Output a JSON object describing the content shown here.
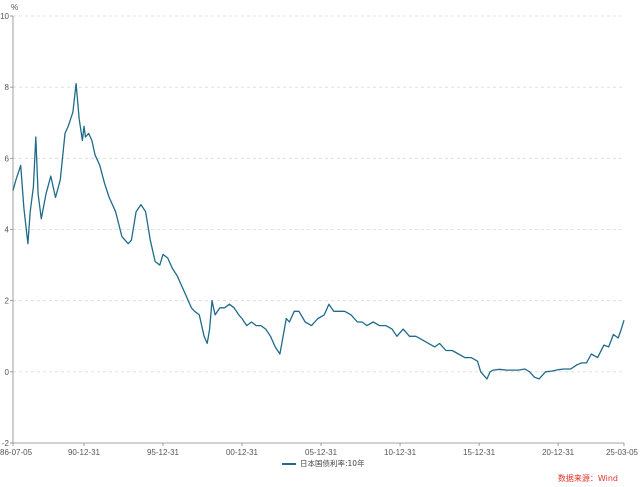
{
  "chart_data": {
    "type": "line",
    "unit_label": "%",
    "y_ticks": [
      "10",
      "8",
      "6",
      "4",
      "2",
      "0",
      "-2"
    ],
    "ylim": [
      -2,
      10
    ],
    "x_ticks": [
      "86-07-05",
      "90-12-31",
      "95-12-31",
      "00-12-31",
      "05-12-31",
      "10-12-31",
      "15-12-31",
      "20-12-31",
      "25-03-05"
    ],
    "x_tick_years": [
      1986.51,
      1991.0,
      1996.0,
      2001.0,
      2006.0,
      2011.0,
      2016.0,
      2021.0,
      2025.17
    ],
    "xlim": [
      1986.51,
      2025.17
    ],
    "grid": true,
    "legend_position": "bottom",
    "source": "数据来源：Wind",
    "series": [
      {
        "name": "日本国债利率:10年",
        "color": "#1f6b8a",
        "x": [
          1986.51,
          1986.7,
          1987.0,
          1987.2,
          1987.45,
          1987.6,
          1987.8,
          1987.95,
          1988.1,
          1988.3,
          1988.6,
          1988.9,
          1989.2,
          1989.5,
          1989.8,
          1990.0,
          1990.3,
          1990.5,
          1990.7,
          1990.9,
          1991.0,
          1991.1,
          1991.3,
          1991.5,
          1991.7,
          1992.0,
          1992.3,
          1992.6,
          1993.0,
          1993.4,
          1993.8,
          1994.0,
          1994.3,
          1994.6,
          1994.9,
          1995.2,
          1995.5,
          1995.8,
          1996.0,
          1996.3,
          1996.6,
          1996.9,
          1997.2,
          1997.5,
          1997.8,
          1998.0,
          1998.3,
          1998.6,
          1998.8,
          1998.95,
          1999.1,
          1999.3,
          1999.6,
          1999.9,
          2000.2,
          2000.5,
          2000.8,
          2001.0,
          2001.3,
          2001.6,
          2001.9,
          2002.2,
          2002.5,
          2002.8,
          2003.1,
          2003.4,
          2003.6,
          2003.8,
          2004.0,
          2004.3,
          2004.6,
          2005.0,
          2005.4,
          2005.8,
          2006.2,
          2006.5,
          2006.8,
          2007.1,
          2007.5,
          2007.9,
          2008.3,
          2008.6,
          2008.9,
          2009.3,
          2009.7,
          2010.1,
          2010.5,
          2010.8,
          2011.2,
          2011.6,
          2012.0,
          2012.4,
          2012.8,
          2013.2,
          2013.5,
          2013.9,
          2014.3,
          2014.7,
          2015.1,
          2015.5,
          2015.9,
          2016.1,
          2016.3,
          2016.5,
          2016.7,
          2016.9,
          2017.3,
          2017.7,
          2018.1,
          2018.5,
          2018.9,
          2019.2,
          2019.5,
          2019.8,
          2020.2,
          2020.6,
          2021.0,
          2021.4,
          2021.8,
          2022.2,
          2022.5,
          2022.8,
          2023.1,
          2023.5,
          2023.9,
          2024.2,
          2024.5,
          2024.8,
          2025.0,
          2025.17
        ],
        "values": [
          5.1,
          5.4,
          5.8,
          4.6,
          3.6,
          4.5,
          5.2,
          6.6,
          5.0,
          4.3,
          5.0,
          5.5,
          4.9,
          5.4,
          6.7,
          6.9,
          7.3,
          8.1,
          7.1,
          6.5,
          6.9,
          6.6,
          6.7,
          6.5,
          6.1,
          5.8,
          5.3,
          4.9,
          4.5,
          3.8,
          3.6,
          3.7,
          4.5,
          4.7,
          4.5,
          3.7,
          3.1,
          3.0,
          3.3,
          3.2,
          2.9,
          2.7,
          2.4,
          2.1,
          1.8,
          1.7,
          1.6,
          1.0,
          0.8,
          1.2,
          2.0,
          1.6,
          1.8,
          1.8,
          1.9,
          1.8,
          1.6,
          1.5,
          1.3,
          1.4,
          1.3,
          1.3,
          1.2,
          1.0,
          0.7,
          0.5,
          1.0,
          1.5,
          1.4,
          1.7,
          1.7,
          1.4,
          1.3,
          1.5,
          1.6,
          1.9,
          1.7,
          1.7,
          1.7,
          1.6,
          1.4,
          1.4,
          1.3,
          1.4,
          1.3,
          1.3,
          1.2,
          1.0,
          1.2,
          1.0,
          1.0,
          0.9,
          0.8,
          0.7,
          0.8,
          0.6,
          0.6,
          0.5,
          0.4,
          0.4,
          0.3,
          0.0,
          -0.1,
          -0.2,
          0.0,
          0.05,
          0.07,
          0.05,
          0.05,
          0.05,
          0.08,
          0.0,
          -0.15,
          -0.2,
          0.0,
          0.02,
          0.06,
          0.08,
          0.08,
          0.2,
          0.25,
          0.25,
          0.5,
          0.4,
          0.75,
          0.7,
          1.05,
          0.95,
          1.2,
          1.45
        ]
      }
    ]
  }
}
